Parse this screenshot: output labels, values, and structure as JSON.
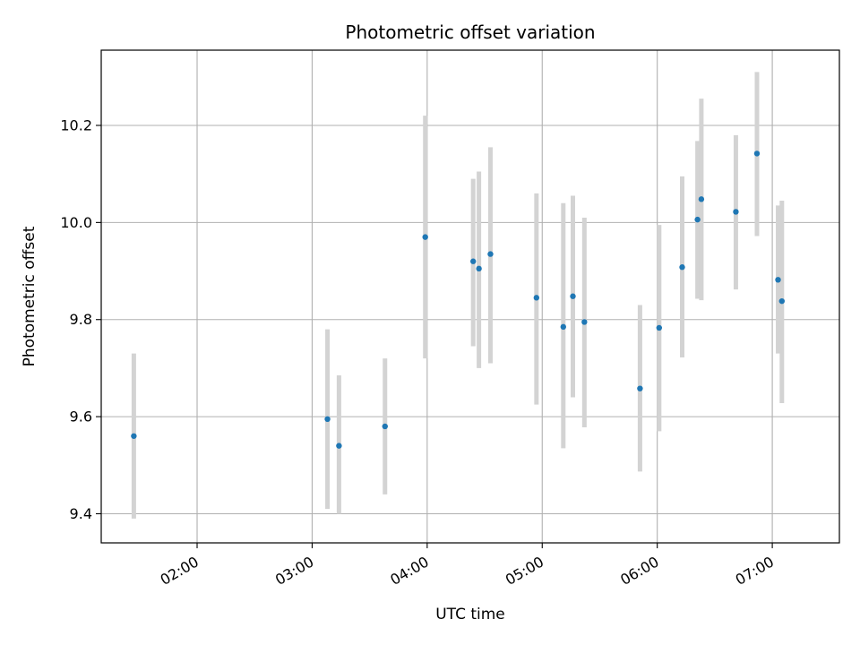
{
  "chart_data": {
    "type": "scatter",
    "title": "Photometric offset variation",
    "xlabel": "UTC time",
    "ylabel": "Photometric offset",
    "xlim": [
      "01:10",
      "07:35"
    ],
    "ylim": [
      9.34,
      10.355
    ],
    "x_ticks": [
      "02:00",
      "03:00",
      "04:00",
      "05:00",
      "06:00",
      "07:00"
    ],
    "y_ticks": [
      "9.4",
      "9.6",
      "9.8",
      "10.0",
      "10.2"
    ],
    "grid": true,
    "point_color": "#1f77b4",
    "errorbar_color": "#d3d3d3",
    "points": [
      {
        "time": "01:27",
        "y": 9.56,
        "low": 9.39,
        "high": 9.73
      },
      {
        "time": "03:08",
        "y": 9.595,
        "low": 9.41,
        "high": 9.78
      },
      {
        "time": "03:14",
        "y": 9.54,
        "low": 9.4,
        "high": 9.685
      },
      {
        "time": "03:38",
        "y": 9.58,
        "low": 9.44,
        "high": 9.72
      },
      {
        "time": "03:59",
        "y": 9.97,
        "low": 9.72,
        "high": 10.22
      },
      {
        "time": "04:24",
        "y": 9.92,
        "low": 9.745,
        "high": 10.09
      },
      {
        "time": "04:27",
        "y": 9.905,
        "low": 9.7,
        "high": 10.105
      },
      {
        "time": "04:33",
        "y": 9.935,
        "low": 9.71,
        "high": 10.155
      },
      {
        "time": "04:57",
        "y": 9.845,
        "low": 9.625,
        "high": 10.06
      },
      {
        "time": "05:11",
        "y": 9.785,
        "low": 9.535,
        "high": 10.04
      },
      {
        "time": "05:16",
        "y": 9.848,
        "low": 9.64,
        "high": 10.055
      },
      {
        "time": "05:22",
        "y": 9.795,
        "low": 9.578,
        "high": 10.01
      },
      {
        "time": "05:51",
        "y": 9.658,
        "low": 9.487,
        "high": 9.83
      },
      {
        "time": "06:01",
        "y": 9.783,
        "low": 9.57,
        "high": 9.995
      },
      {
        "time": "06:13",
        "y": 9.908,
        "low": 9.722,
        "high": 10.095
      },
      {
        "time": "06:21",
        "y": 10.006,
        "low": 9.843,
        "high": 10.168
      },
      {
        "time": "06:23",
        "y": 10.048,
        "low": 9.84,
        "high": 10.255
      },
      {
        "time": "06:41",
        "y": 10.022,
        "low": 9.862,
        "high": 10.18
      },
      {
        "time": "06:52",
        "y": 10.142,
        "low": 9.972,
        "high": 10.31
      },
      {
        "time": "07:03",
        "y": 9.882,
        "low": 9.73,
        "high": 10.035
      },
      {
        "time": "07:05",
        "y": 9.838,
        "low": 9.628,
        "high": 10.045
      }
    ]
  }
}
